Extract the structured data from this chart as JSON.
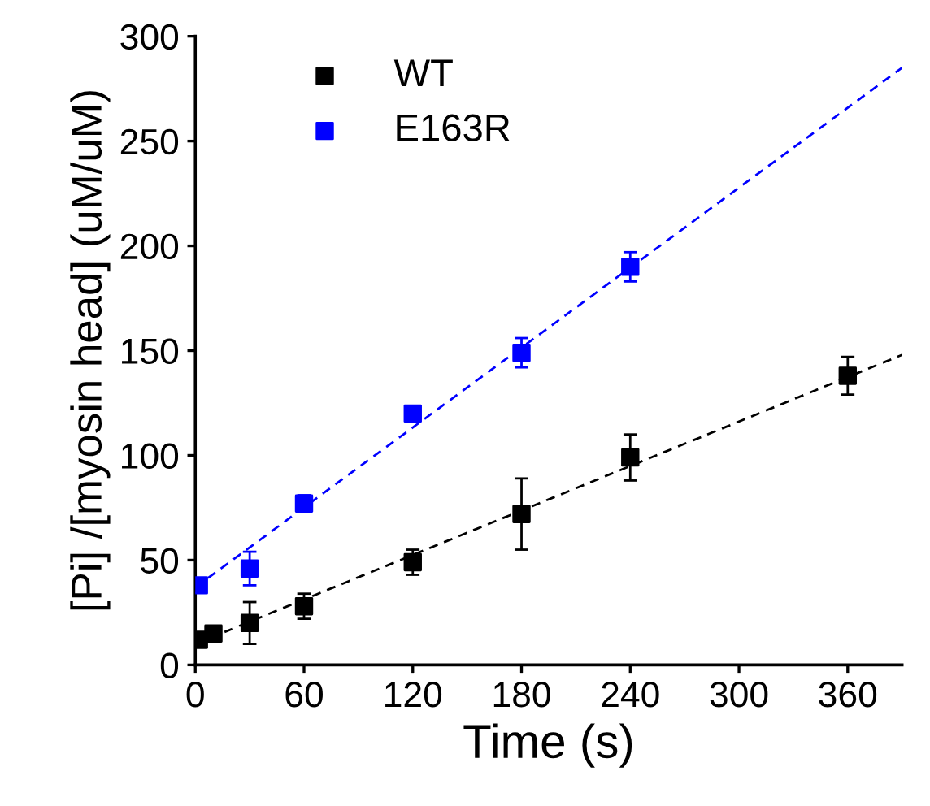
{
  "chart_data": {
    "type": "scatter",
    "xlabel": "Time (s)",
    "ylabel": "[Pi] /[myosin head] (uM/uM)",
    "xlim": [
      0,
      390
    ],
    "ylim": [
      0,
      300
    ],
    "xticks": [
      0,
      60,
      120,
      180,
      240,
      300,
      360
    ],
    "yticks": [
      0,
      50,
      100,
      150,
      200,
      250,
      300
    ],
    "grid": false,
    "legend": "top left",
    "marker": "square",
    "series": [
      {
        "name": "WT",
        "color": "#000000",
        "x": [
          2,
          10,
          30,
          60,
          120,
          180,
          240,
          360
        ],
        "values": [
          12,
          15,
          20,
          28,
          49,
          72,
          99,
          138
        ],
        "errors": [
          3,
          3,
          10,
          6,
          6,
          17,
          11,
          9
        ]
      },
      {
        "name": "E163R",
        "color": "#0000ff",
        "x": [
          2,
          30,
          60,
          120,
          180,
          240
        ],
        "values": [
          38,
          46,
          77,
          120,
          149,
          190
        ],
        "errors": [
          3,
          8,
          4,
          3,
          7,
          7
        ]
      },
      {
        "type": "line",
        "line_style": "dashed",
        "marker": "none",
        "color": "#000000",
        "x": [
          0,
          390
        ],
        "values": [
          10,
          148
        ]
      },
      {
        "type": "line",
        "line_style": "dashed",
        "marker": "none",
        "color": "#0000ff",
        "x": [
          0,
          390
        ],
        "values": [
          37,
          285
        ]
      }
    ]
  }
}
